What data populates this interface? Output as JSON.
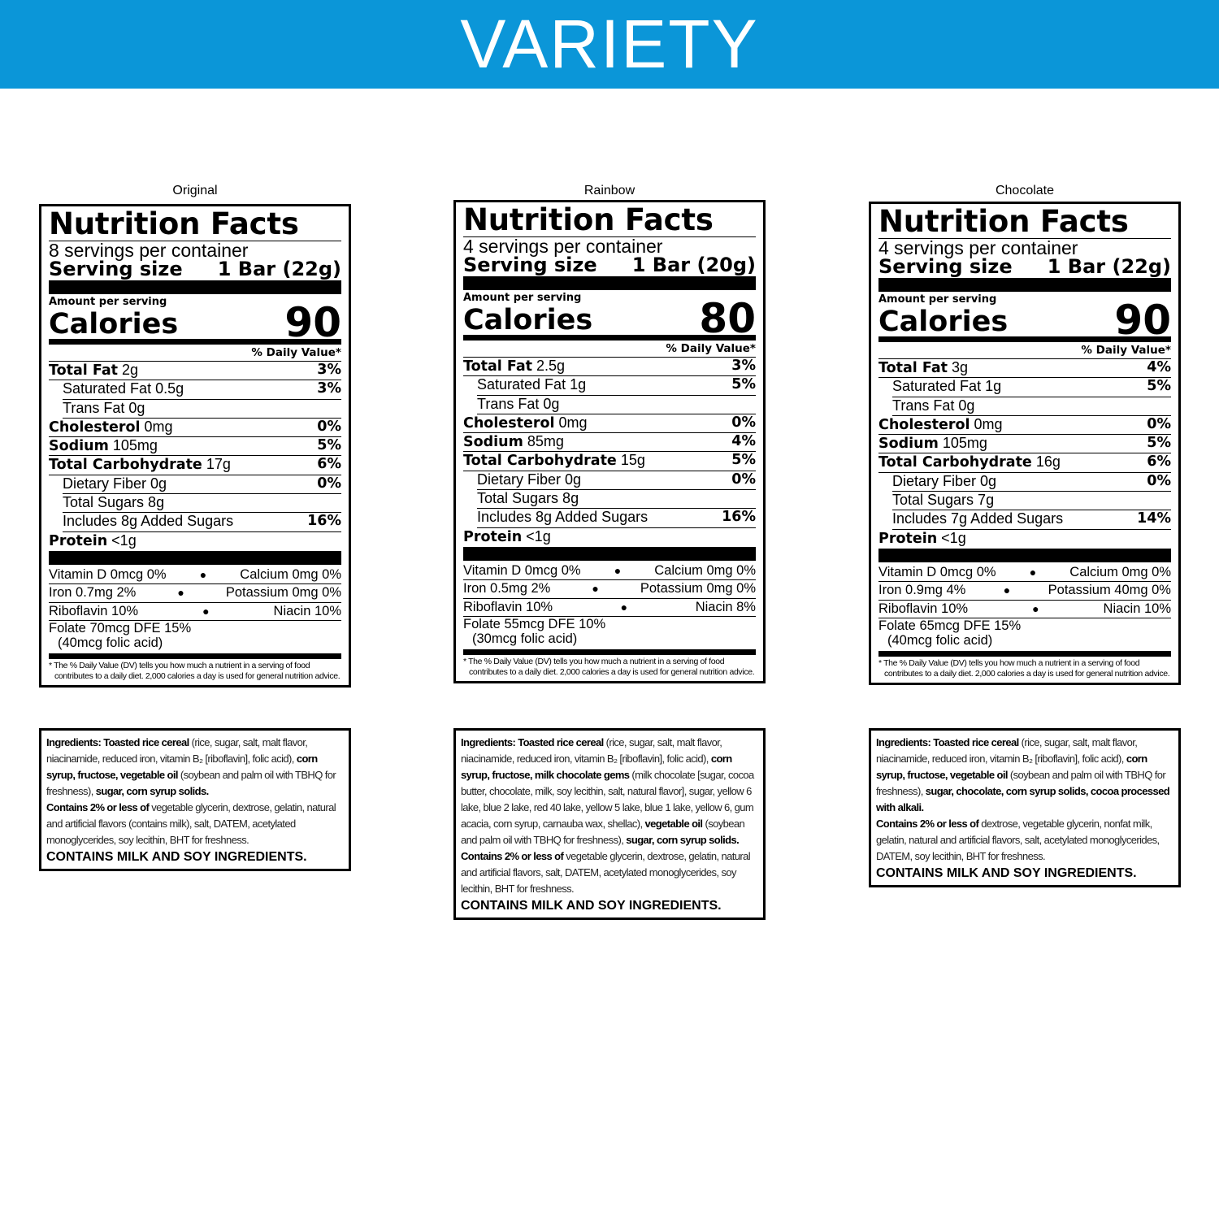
{
  "banner": {
    "title": "VARIETY",
    "color": "#0b96d8"
  },
  "labels": [
    {
      "flavor": "Original",
      "title": "Nutrition Facts",
      "servings": "8 servings per container",
      "serving_size_label": "Serving size",
      "serving_size": "1 Bar (22g)",
      "amount_per_serving": "Amount per serving",
      "calories_label": "Calories",
      "calories": "90",
      "dv_header": "% Daily Value*",
      "rows": [
        {
          "bold": "Total Fat",
          "rest": " 2g",
          "dv": "3%",
          "indent": false
        },
        {
          "bold": "",
          "rest": "Saturated Fat 0.5g",
          "dv": "3%",
          "indent": true
        },
        {
          "bold": "",
          "rest": "Trans Fat 0g",
          "dv": "",
          "indent": true
        },
        {
          "bold": "Cholesterol",
          "rest": " 0mg",
          "dv": "0%",
          "indent": false
        },
        {
          "bold": "Sodium",
          "rest": " 105mg",
          "dv": "5%",
          "indent": false
        },
        {
          "bold": "Total Carbohydrate",
          "rest": " 17g",
          "dv": "6%",
          "indent": false
        },
        {
          "bold": "",
          "rest": "Dietary Fiber 0g",
          "dv": "0%",
          "indent": true
        },
        {
          "bold": "",
          "rest": "Total Sugars 8g",
          "dv": "",
          "indent": true
        },
        {
          "bold": "",
          "rest": "Includes 8g Added Sugars",
          "dv": "16%",
          "indent": true
        },
        {
          "bold": "Protein",
          "rest": " <1g",
          "dv": "",
          "indent": false
        }
      ],
      "vitamins": [
        {
          "left": "Vitamin D 0mcg 0%",
          "right": "Calcium 0mg 0%"
        },
        {
          "left": "Iron 0.7mg 2%",
          "right": "Potassium 0mg 0%"
        },
        {
          "left": "Riboflavin 10%",
          "right": "Niacin 10%"
        }
      ],
      "folate": "Folate 70mcg DFE 15%",
      "folate_sub": "(40mcg folic acid)",
      "footnote": "* The % Daily Value (DV) tells you how much a nutrient in a serving of food",
      "footnote_sub": "contributes to a daily diet. 2,000 calories a day is used for general nutrition advice.",
      "ingredients": [
        {
          "t": "Ingredients: Toasted rice cereal",
          "b": true
        },
        {
          "t": " (rice, sugar, salt, malt flavor, niacinamide, reduced iron, vitamin B₂ [riboflavin], folic acid), ",
          "b": false
        },
        {
          "t": "corn syrup, fructose, vegetable oil",
          "b": true
        },
        {
          "t": " (soybean and palm oil with TBHQ for freshness), ",
          "b": false
        },
        {
          "t": "sugar, corn syrup solids.",
          "b": true
        }
      ],
      "contains_bold": "Contains 2% or less of",
      "contains_rest": " vegetable glycerin, dextrose, gelatin, natural and artificial flavors (contains milk), salt, DATEM, acetylated monoglycerides, soy lecithin, BHT for freshness.",
      "allergen": "CONTAINS MILK AND SOY INGREDIENTS."
    },
    {
      "flavor": "Rainbow",
      "title": "Nutrition Facts",
      "servings": "4 servings per container",
      "serving_size_label": "Serving size",
      "serving_size": "1 Bar (20g)",
      "amount_per_serving": "Amount per serving",
      "calories_label": "Calories",
      "calories": "80",
      "dv_header": "% Daily Value*",
      "rows": [
        {
          "bold": "Total Fat",
          "rest": " 2.5g",
          "dv": "3%",
          "indent": false
        },
        {
          "bold": "",
          "rest": "Saturated Fat 1g",
          "dv": "5%",
          "indent": true
        },
        {
          "bold": "",
          "rest": "Trans Fat 0g",
          "dv": "",
          "indent": true
        },
        {
          "bold": "Cholesterol",
          "rest": " 0mg",
          "dv": "0%",
          "indent": false
        },
        {
          "bold": "Sodium",
          "rest": " 85mg",
          "dv": "4%",
          "indent": false
        },
        {
          "bold": "Total Carbohydrate",
          "rest": " 15g",
          "dv": "5%",
          "indent": false
        },
        {
          "bold": "",
          "rest": "Dietary Fiber 0g",
          "dv": "0%",
          "indent": true
        },
        {
          "bold": "",
          "rest": "Total Sugars 8g",
          "dv": "",
          "indent": true
        },
        {
          "bold": "",
          "rest": "Includes 8g Added Sugars",
          "dv": "16%",
          "indent": true
        },
        {
          "bold": "Protein",
          "rest": " <1g",
          "dv": "",
          "indent": false
        }
      ],
      "vitamins": [
        {
          "left": "Vitamin D 0mcg 0%",
          "right": "Calcium 0mg 0%"
        },
        {
          "left": "Iron 0.5mg 2%",
          "right": "Potassium 0mg 0%"
        },
        {
          "left": "Riboflavin 10%",
          "right": "Niacin 8%"
        }
      ],
      "folate": "Folate 55mcg DFE 10%",
      "folate_sub": "(30mcg folic acid)",
      "footnote": "* The % Daily Value (DV) tells you how much a nutrient in a serving of food",
      "footnote_sub": "contributes to a daily diet. 2,000 calories a day is used for general nutrition advice.",
      "ingredients": [
        {
          "t": "Ingredients: Toasted rice cereal",
          "b": true
        },
        {
          "t": " (rice, sugar, salt, malt flavor, niacinamide, reduced iron, vitamin B₂ [riboflavin], folic acid), ",
          "b": false
        },
        {
          "t": "corn syrup, fructose, milk chocolate gems",
          "b": true
        },
        {
          "t": " (milk chocolate [sugar, cocoa butter, chocolate, milk, soy lecithin, salt, natural flavor], sugar, yellow 6 lake, blue 2 lake, red 40 lake, yellow 5 lake, blue 1 lake, yellow 6, gum acacia, corn syrup, carnauba wax, shellac), ",
          "b": false
        },
        {
          "t": "vegetable oil",
          "b": true
        },
        {
          "t": " (soybean and palm oil with TBHQ for freshness), ",
          "b": false
        },
        {
          "t": "sugar, corn syrup solids.",
          "b": true
        }
      ],
      "contains_bold": "Contains 2% or less of",
      "contains_rest": " vegetable glycerin, dextrose, gelatin, natural and artificial flavors, salt, DATEM, acetylated monoglycerides, soy lecithin, BHT for freshness.",
      "allergen": "CONTAINS MILK AND SOY INGREDIENTS."
    },
    {
      "flavor": "Chocolate",
      "title": "Nutrition Facts",
      "servings": "4 servings per container",
      "serving_size_label": "Serving size",
      "serving_size": "1 Bar (22g)",
      "amount_per_serving": "Amount per serving",
      "calories_label": "Calories",
      "calories": "90",
      "dv_header": "% Daily Value*",
      "rows": [
        {
          "bold": "Total Fat",
          "rest": " 3g",
          "dv": "4%",
          "indent": false
        },
        {
          "bold": "",
          "rest": "Saturated Fat 1g",
          "dv": "5%",
          "indent": true
        },
        {
          "bold": "",
          "rest": "Trans Fat 0g",
          "dv": "",
          "indent": true
        },
        {
          "bold": "Cholesterol",
          "rest": " 0mg",
          "dv": "0%",
          "indent": false
        },
        {
          "bold": "Sodium",
          "rest": " 105mg",
          "dv": "5%",
          "indent": false
        },
        {
          "bold": "Total Carbohydrate",
          "rest": " 16g",
          "dv": "6%",
          "indent": false
        },
        {
          "bold": "",
          "rest": "Dietary Fiber 0g",
          "dv": "0%",
          "indent": true
        },
        {
          "bold": "",
          "rest": "Total Sugars 7g",
          "dv": "",
          "indent": true
        },
        {
          "bold": "",
          "rest": "Includes 7g Added Sugars",
          "dv": "14%",
          "indent": true
        },
        {
          "bold": "Protein",
          "rest": " <1g",
          "dv": "",
          "indent": false
        }
      ],
      "vitamins": [
        {
          "left": "Vitamin D 0mcg 0%",
          "right": "Calcium 0mg 0%"
        },
        {
          "left": "Iron 0.9mg 4%",
          "right": "Potassium 40mg 0%"
        },
        {
          "left": "Riboflavin 10%",
          "right": "Niacin 10%"
        }
      ],
      "folate": "Folate 65mcg DFE 15%",
      "folate_sub": "(40mcg folic acid)",
      "footnote": "* The % Daily Value (DV) tells you how much a nutrient in a serving of food",
      "footnote_sub": "contributes to a daily diet. 2,000 calories a day is used for general nutrition advice.",
      "ingredients": [
        {
          "t": "Ingredients: Toasted rice cereal",
          "b": true
        },
        {
          "t": " (rice, sugar, salt, malt flavor, niacinamide, reduced iron, vitamin B₂ [riboflavin], folic acid), ",
          "b": false
        },
        {
          "t": "corn syrup, fructose, vegetable oil",
          "b": true
        },
        {
          "t": " (soybean and palm oil with TBHQ for freshness), ",
          "b": false
        },
        {
          "t": "sugar, chocolate, corn syrup solids, cocoa processed with alkali.",
          "b": true
        }
      ],
      "contains_bold": "Contains 2% or less of",
      "contains_rest": " dextrose, vegetable glycerin, nonfat milk, gelatin, natural and artificial flavors, salt, acetylated monoglycerides, DATEM, soy lecithin, BHT for freshness.",
      "allergen": "CONTAINS MILK AND SOY INGREDIENTS."
    }
  ]
}
